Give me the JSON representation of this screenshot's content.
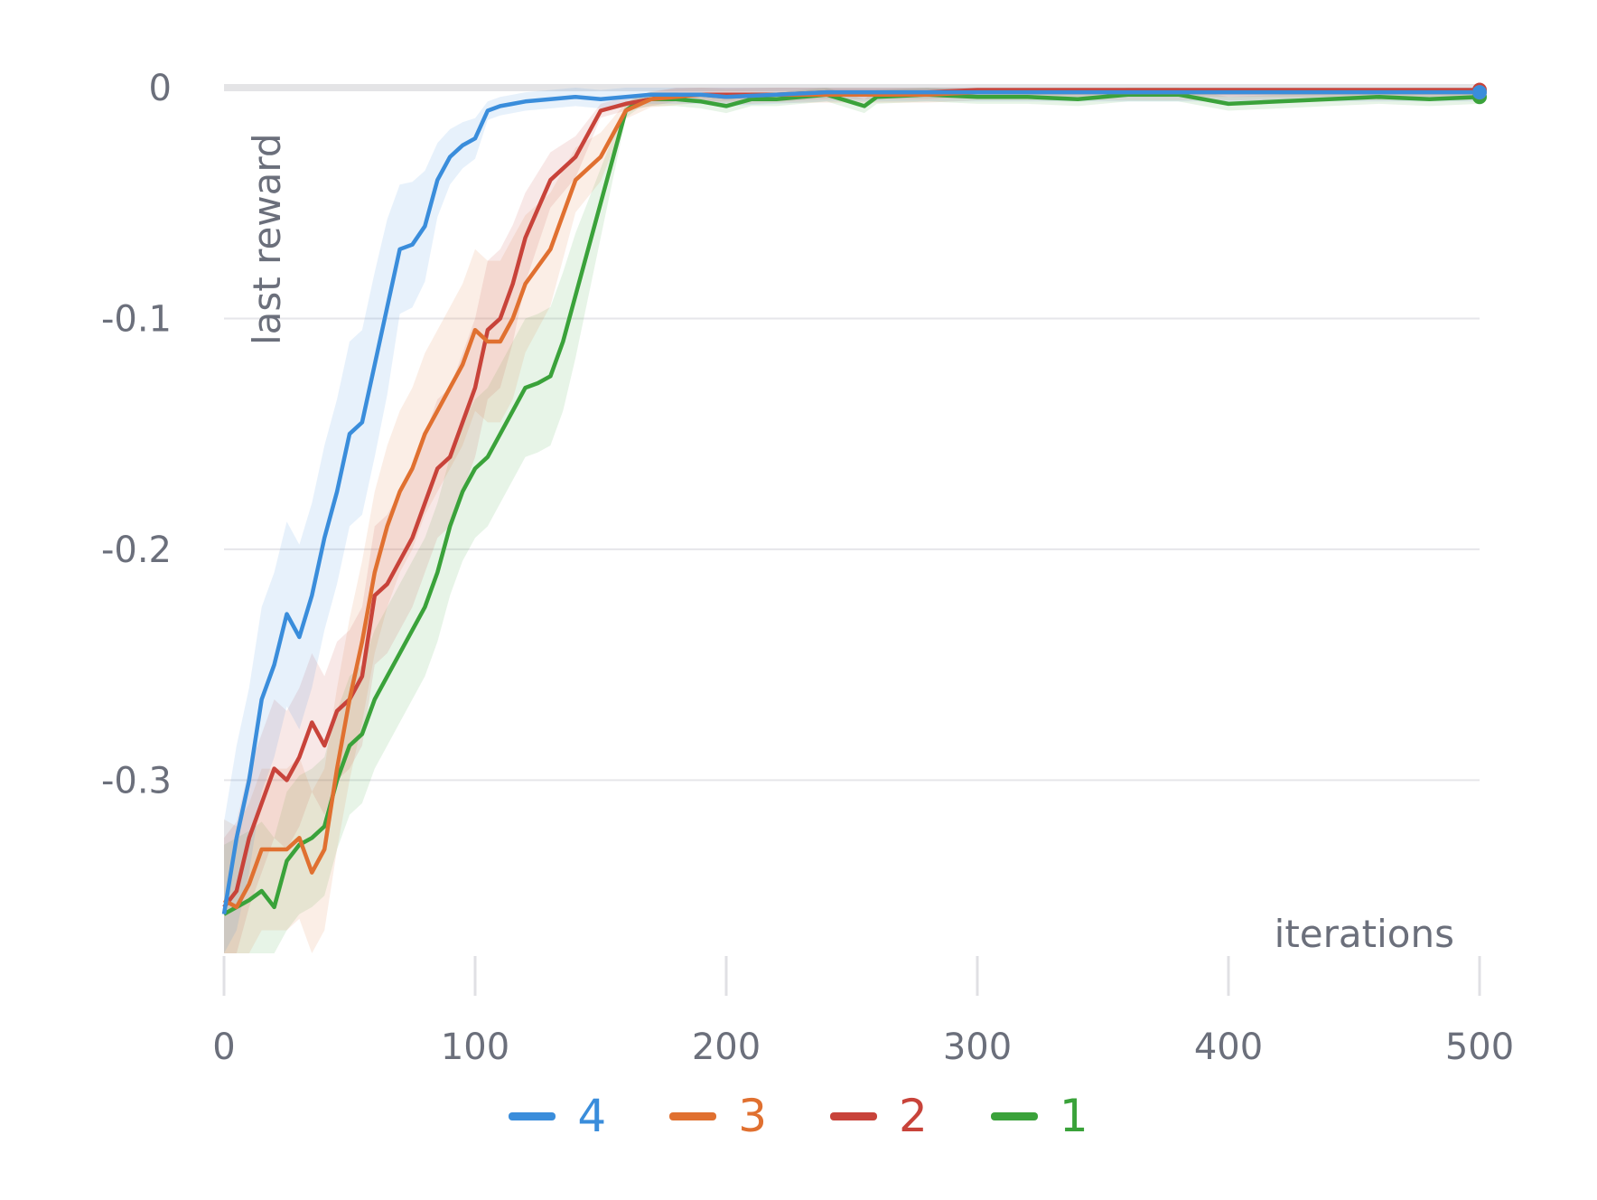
{
  "chart_data": {
    "type": "line",
    "xlabel": "iterations",
    "ylabel": "last reward",
    "xlim": [
      0,
      500
    ],
    "ylim": [
      -0.375,
      0.0
    ],
    "xticks": [
      "0",
      "100",
      "200",
      "300",
      "400",
      "500"
    ],
    "yticks": [
      "0",
      "-0.1",
      "-0.2",
      "-0.3"
    ],
    "ytick_values": [
      0,
      -0.1,
      -0.2,
      -0.3
    ],
    "xtick_values": [
      0,
      100,
      200,
      300,
      400,
      500
    ],
    "grid": true,
    "legend_position": "bottom-center",
    "series": [
      {
        "name": "4",
        "color": "#3a8ddb",
        "x": [
          0,
          5,
          10,
          15,
          20,
          25,
          30,
          35,
          40,
          45,
          50,
          55,
          60,
          65,
          70,
          75,
          80,
          85,
          90,
          95,
          100,
          105,
          110,
          115,
          120,
          130,
          140,
          150,
          160,
          170,
          180,
          190,
          200,
          220,
          240,
          260,
          280,
          300,
          350,
          400,
          450,
          500
        ],
        "y": [
          -0.358,
          -0.325,
          -0.3,
          -0.265,
          -0.25,
          -0.228,
          -0.238,
          -0.22,
          -0.195,
          -0.175,
          -0.15,
          -0.145,
          -0.12,
          -0.095,
          -0.07,
          -0.068,
          -0.06,
          -0.04,
          -0.03,
          -0.025,
          -0.022,
          -0.01,
          -0.008,
          -0.007,
          -0.006,
          -0.005,
          -0.004,
          -0.005,
          -0.004,
          -0.003,
          -0.003,
          -0.003,
          -0.004,
          -0.003,
          -0.002,
          -0.002,
          -0.002,
          -0.002,
          -0.002,
          -0.002,
          -0.002,
          -0.002
        ],
        "band": 0.04
      },
      {
        "name": "3",
        "color": "#e07030",
        "x": [
          0,
          5,
          10,
          15,
          20,
          25,
          30,
          35,
          40,
          45,
          50,
          55,
          60,
          65,
          70,
          75,
          80,
          85,
          90,
          95,
          100,
          105,
          110,
          115,
          120,
          130,
          140,
          150,
          160,
          170,
          180,
          190,
          200,
          220,
          240,
          260,
          280,
          300,
          350,
          400,
          450,
          500
        ],
        "y": [
          -0.352,
          -0.355,
          -0.345,
          -0.33,
          -0.33,
          -0.33,
          -0.325,
          -0.34,
          -0.33,
          -0.295,
          -0.265,
          -0.24,
          -0.21,
          -0.19,
          -0.175,
          -0.165,
          -0.15,
          -0.14,
          -0.13,
          -0.12,
          -0.105,
          -0.11,
          -0.11,
          -0.1,
          -0.085,
          -0.07,
          -0.04,
          -0.03,
          -0.01,
          -0.005,
          -0.004,
          -0.003,
          -0.004,
          -0.003,
          -0.003,
          -0.003,
          -0.003,
          -0.002,
          -0.002,
          -0.002,
          -0.002,
          -0.002
        ],
        "band": 0.035
      },
      {
        "name": "2",
        "color": "#c8433a",
        "x": [
          0,
          5,
          10,
          15,
          20,
          25,
          30,
          35,
          40,
          45,
          50,
          55,
          60,
          65,
          70,
          75,
          80,
          85,
          90,
          95,
          100,
          105,
          110,
          115,
          120,
          130,
          140,
          150,
          160,
          170,
          180,
          190,
          200,
          220,
          240,
          260,
          280,
          300,
          350,
          400,
          450,
          500
        ],
        "y": [
          -0.355,
          -0.348,
          -0.325,
          -0.31,
          -0.295,
          -0.3,
          -0.29,
          -0.275,
          -0.285,
          -0.27,
          -0.265,
          -0.255,
          -0.22,
          -0.215,
          -0.205,
          -0.195,
          -0.18,
          -0.165,
          -0.16,
          -0.145,
          -0.13,
          -0.105,
          -0.1,
          -0.085,
          -0.065,
          -0.04,
          -0.03,
          -0.01,
          -0.007,
          -0.005,
          -0.003,
          -0.003,
          -0.003,
          -0.003,
          -0.002,
          -0.002,
          -0.002,
          -0.001,
          -0.001,
          -0.001,
          -0.001,
          -0.001
        ],
        "band": 0.03
      },
      {
        "name": "1",
        "color": "#3aa23a",
        "x": [
          0,
          5,
          10,
          15,
          20,
          25,
          30,
          35,
          40,
          45,
          50,
          55,
          60,
          65,
          70,
          75,
          80,
          85,
          90,
          95,
          100,
          105,
          110,
          115,
          120,
          125,
          130,
          135,
          140,
          145,
          150,
          155,
          160,
          165,
          170,
          180,
          190,
          200,
          210,
          220,
          240,
          255,
          260,
          280,
          300,
          320,
          340,
          360,
          380,
          400,
          420,
          440,
          460,
          480,
          500
        ],
        "y": [
          -0.358,
          -0.355,
          -0.352,
          -0.348,
          -0.355,
          -0.335,
          -0.328,
          -0.325,
          -0.32,
          -0.3,
          -0.285,
          -0.28,
          -0.265,
          -0.255,
          -0.245,
          -0.235,
          -0.225,
          -0.21,
          -0.19,
          -0.175,
          -0.165,
          -0.16,
          -0.15,
          -0.14,
          -0.13,
          -0.128,
          -0.125,
          -0.11,
          -0.09,
          -0.07,
          -0.05,
          -0.03,
          -0.01,
          -0.006,
          -0.005,
          -0.005,
          -0.006,
          -0.008,
          -0.005,
          -0.005,
          -0.003,
          -0.008,
          -0.004,
          -0.003,
          -0.004,
          -0.004,
          -0.005,
          -0.003,
          -0.003,
          -0.007,
          -0.006,
          -0.005,
          -0.004,
          -0.005,
          -0.004
        ],
        "band": 0.03
      }
    ]
  }
}
